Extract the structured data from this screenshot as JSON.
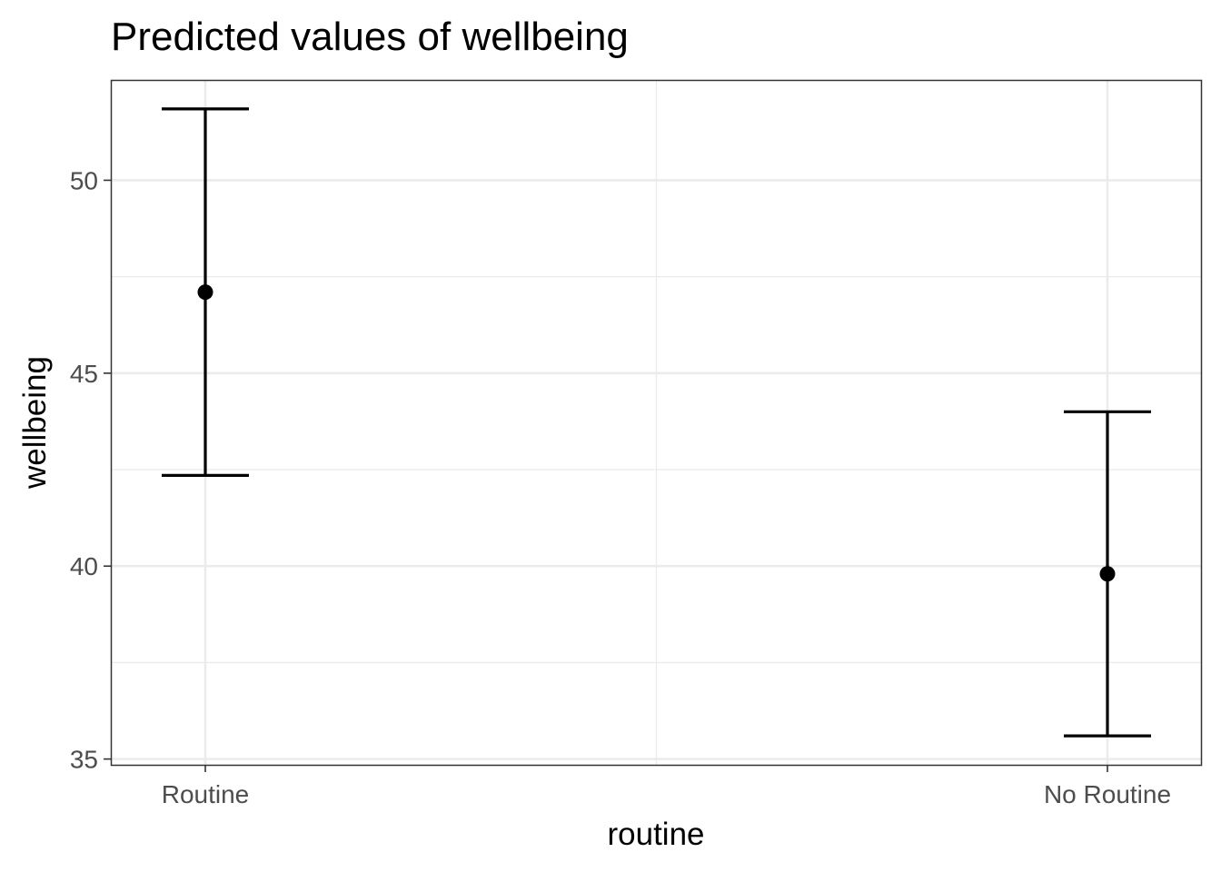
{
  "chart_data": {
    "type": "scatter",
    "subtype": "point-with-error-bars",
    "title": "Predicted values of wellbeing",
    "xlabel": "routine",
    "ylabel": "wellbeing",
    "categories": [
      "Routine",
      "No Routine"
    ],
    "series": [
      {
        "values": [
          47.1,
          39.8
        ],
        "ci_low": [
          42.35,
          35.6
        ],
        "ci_high": [
          51.85,
          44.0
        ]
      }
    ],
    "ylim": [
      34.85,
      52.6
    ],
    "yticks": [
      35,
      40,
      45,
      50
    ],
    "yminor_ticks": [
      37.5,
      42.5,
      47.5
    ],
    "grid": true,
    "theme": "bw",
    "colors": {
      "point": "#000000",
      "errorbar": "#000000",
      "grid": "#ebebeb",
      "panel_border": "#333333",
      "tick_label": "#4d4d4d"
    }
  }
}
